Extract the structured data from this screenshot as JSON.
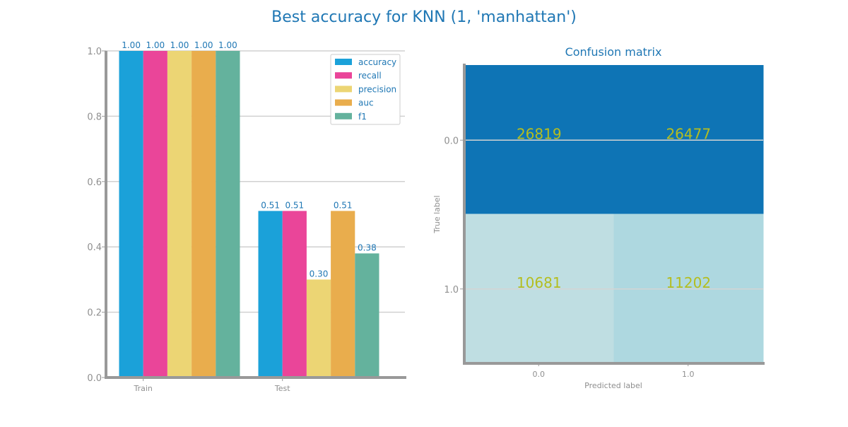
{
  "suptitle": "Best accuracy for KNN (1, 'manhattan')",
  "chart_data": [
    {
      "type": "bar",
      "title": "",
      "xlabel": "",
      "ylabel": "",
      "categories": [
        "Train",
        "Test"
      ],
      "ylim": [
        0,
        1.0
      ],
      "yticks": [
        "0.0",
        "0.2",
        "0.4",
        "0.6",
        "0.8",
        "1.0"
      ],
      "grid": true,
      "legend_position": "top-right",
      "series": [
        {
          "name": "accuracy",
          "color": "#1ba1d9",
          "values": [
            1.0,
            0.51
          ],
          "labels": [
            "1.00",
            "0.51"
          ]
        },
        {
          "name": "recall",
          "color": "#ea4599",
          "values": [
            1.0,
            0.51
          ],
          "labels": [
            "1.00",
            "0.51"
          ]
        },
        {
          "name": "precision",
          "color": "#ecd574",
          "values": [
            1.0,
            0.3
          ],
          "labels": [
            "1.00",
            "0.30"
          ]
        },
        {
          "name": "auc",
          "color": "#e9ad4d",
          "values": [
            1.0,
            0.51
          ],
          "labels": [
            "1.00",
            "0.51"
          ]
        },
        {
          "name": "f1",
          "color": "#64b29d",
          "values": [
            1.0,
            0.38
          ],
          "labels": [
            "1.00",
            "0.38"
          ]
        }
      ]
    },
    {
      "type": "heatmap",
      "title": "Confusion matrix",
      "xlabel": "Predicted label",
      "ylabel": "True label",
      "x_categories": [
        "0.0",
        "1.0"
      ],
      "y_categories": [
        "0.0",
        "1.0"
      ],
      "values": [
        [
          26819,
          26477
        ],
        [
          10681,
          11202
        ]
      ],
      "colors": [
        [
          "#0e74b5",
          "#0e74b5"
        ],
        [
          "#bfdee2",
          "#aed8e0"
        ]
      ]
    }
  ]
}
